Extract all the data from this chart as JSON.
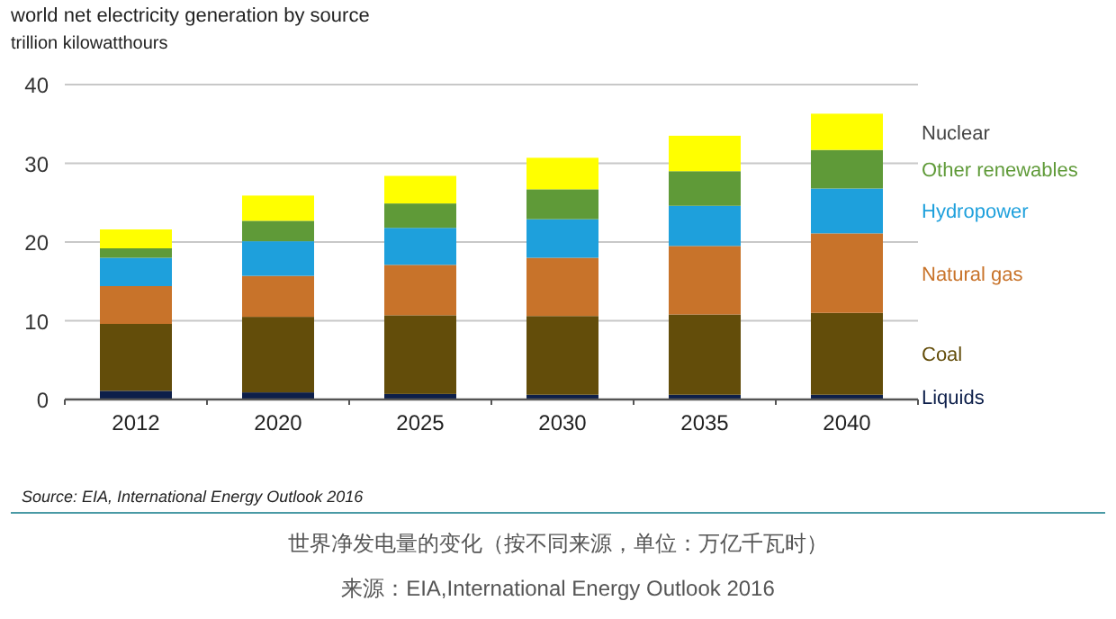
{
  "chart_data": {
    "type": "bar",
    "stacked": true,
    "title": "world net electricity generation by source",
    "subtitle": "trillion kilowatthours",
    "categories": [
      "2012",
      "2020",
      "2025",
      "2030",
      "2035",
      "2040"
    ],
    "series": [
      {
        "name": "Liquids",
        "color": "#0d1f4a",
        "values": [
          1.1,
          0.9,
          0.7,
          0.6,
          0.6,
          0.6
        ]
      },
      {
        "name": "Coal",
        "color": "#634d0a",
        "values": [
          8.5,
          9.6,
          10.0,
          10.0,
          10.2,
          10.4
        ]
      },
      {
        "name": "Natural gas",
        "color": "#c8732a",
        "values": [
          4.8,
          5.2,
          6.4,
          7.4,
          8.7,
          10.1
        ]
      },
      {
        "name": "Hydropower",
        "color": "#1ea0dc",
        "values": [
          3.6,
          4.4,
          4.7,
          4.9,
          5.1,
          5.7
        ]
      },
      {
        "name": "Other renewables",
        "color": "#5f9a38",
        "values": [
          1.2,
          2.6,
          3.1,
          3.8,
          4.4,
          4.9
        ]
      },
      {
        "name": "Nuclear",
        "color": "#ffff00",
        "values": [
          2.4,
          3.2,
          3.5,
          4.0,
          4.5,
          4.6
        ]
      }
    ],
    "ylim": [
      0,
      40
    ],
    "yticks": [
      0,
      10,
      20,
      30,
      40
    ],
    "grid": "y",
    "legend": "right",
    "annotations": [
      "Source:  EIA, International Energy Outlook 2016",
      "世界净发电量的变化（按不同来源，单位：万亿千瓦时）",
      "来源：EIA,International Energy Outlook 2016"
    ]
  }
}
